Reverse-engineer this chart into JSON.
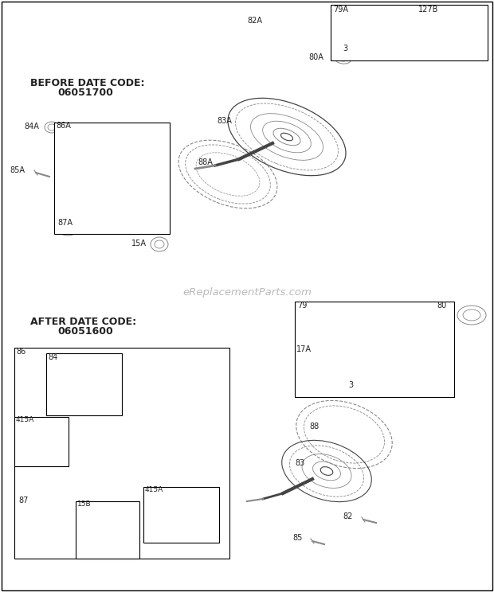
{
  "bg_color": "#ffffff",
  "border_color": "#000000",
  "watermark": "eReplacementParts.com",
  "section1_label": "BEFORE DATE CODE:",
  "section1_code": "06051700",
  "section2_label": "AFTER DATE CODE:",
  "section2_code": "06051600"
}
